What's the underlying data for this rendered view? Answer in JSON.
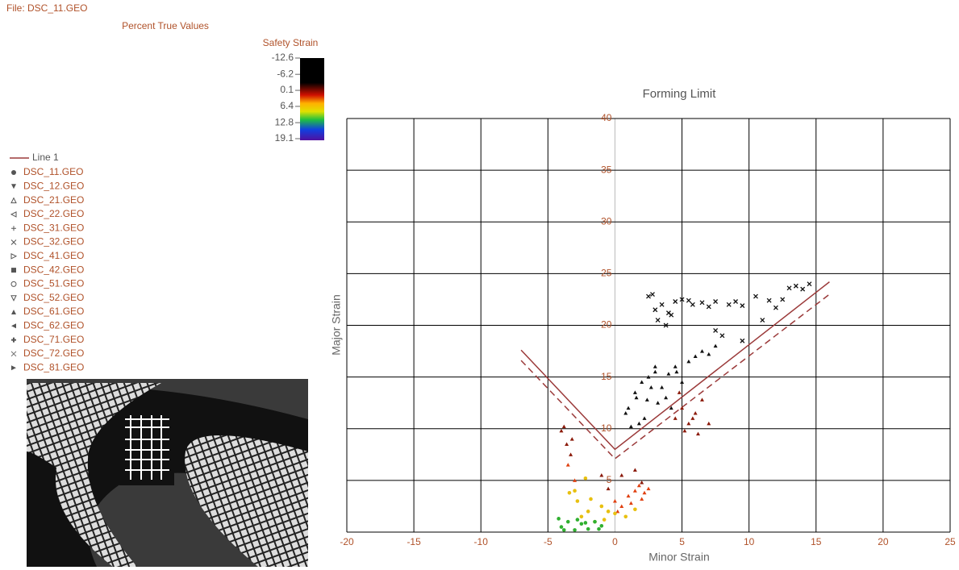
{
  "file_label": "File: DSC_11.GEO",
  "subtitle": "Percent True Values",
  "colorbar": {
    "title": "Safety Strain",
    "ticks": [
      -12.6,
      -6.2,
      0.1,
      6.4,
      12.8,
      19.1
    ]
  },
  "legend": {
    "line": "Line 1",
    "files": [
      "DSC_11.GEO",
      "DSC_12.GEO",
      "DSC_21.GEO",
      "DSC_22.GEO",
      "DSC_31.GEO",
      "DSC_32.GEO",
      "DSC_41.GEO",
      "DSC_42.GEO",
      "DSC_51.GEO",
      "DSC_52.GEO",
      "DSC_61.GEO",
      "DSC_62.GEO",
      "DSC_71.GEO",
      "DSC_72.GEO",
      "DSC_81.GEO"
    ]
  },
  "chart_data": {
    "type": "scatter",
    "title": "Forming Limit",
    "x_label": "Minor Strain",
    "y_label": "Major Strain",
    "xlim": [
      -20,
      25
    ],
    "ylim": [
      0,
      40
    ],
    "xticks": [
      -20,
      -15,
      -10,
      -5,
      0,
      5,
      10,
      15,
      20,
      25
    ],
    "yticks": [
      5,
      10,
      15,
      20,
      25,
      30,
      35,
      40
    ],
    "grid": true,
    "lines": [
      {
        "name": "Line 1",
        "color": "#9b3a3a",
        "x": [
          -7,
          0,
          16
        ],
        "values": [
          17.6,
          8,
          24.2
        ]
      },
      {
        "color": "#9b3a3a",
        "dashed": true,
        "x": [
          -7,
          0,
          16
        ],
        "values": [
          16.6,
          7.1,
          23
        ]
      }
    ],
    "series": [
      {
        "color": "#111111",
        "marker": "x",
        "x": [
          2.5,
          3,
          3.5,
          4,
          4.5,
          3.2,
          2.8,
          5,
          5.5,
          6.5,
          7,
          7.5,
          8.5,
          9,
          9.5,
          10.5,
          11,
          11.5,
          12,
          12.5,
          13,
          13.5,
          14,
          14.5,
          8,
          9.5,
          7.5,
          4.2,
          3.8,
          5.8
        ],
        "values": [
          22.8,
          21.5,
          22,
          21.2,
          22.3,
          20.5,
          23,
          22.5,
          22.4,
          22.2,
          21.8,
          22.3,
          22,
          22.3,
          21.9,
          22.8,
          20.5,
          22.4,
          21.7,
          22.5,
          23.6,
          23.8,
          23.5,
          24,
          19,
          18.5,
          19.5,
          21,
          20,
          22
        ]
      },
      {
        "color": "#111111",
        "marker": "triangle",
        "x": [
          1,
          1.5,
          2,
          2.5,
          3,
          3.5,
          4,
          4.5,
          2.2,
          1.8,
          3.2,
          3.8,
          1.2,
          2.7,
          4.2,
          5,
          0.8,
          1.6,
          3,
          4.6,
          5.5,
          6,
          6.5,
          7,
          7.5,
          2.4
        ],
        "values": [
          12,
          13.5,
          14.5,
          15,
          15.5,
          14,
          15.3,
          16,
          11,
          10.5,
          12.5,
          13,
          10.2,
          14,
          12,
          14.5,
          11.5,
          13,
          16,
          15.5,
          16.5,
          17,
          17.5,
          17.2,
          18,
          12.8
        ]
      },
      {
        "color": "#8b1a0a",
        "marker": "triangle",
        "x": [
          4.5,
          5,
          5.5,
          6,
          6.5,
          4.8,
          5.2,
          5.8,
          6.2,
          7,
          -4,
          -3.6,
          -3.2,
          -3.8,
          -3.3,
          0.5,
          1.5,
          2,
          -1,
          -0.5
        ],
        "values": [
          11,
          12,
          10.5,
          11.5,
          12.8,
          13.5,
          9.8,
          11,
          9.5,
          10.5,
          9.8,
          8.5,
          9,
          10.2,
          7.5,
          5.5,
          6,
          4.8,
          5.5,
          4.2
        ]
      },
      {
        "color": "#e04010",
        "marker": "triangle",
        "x": [
          0,
          0.5,
          1,
          1.5,
          2,
          2.5,
          -3.5,
          -3,
          0.2,
          1.2,
          2.2,
          1.8
        ],
        "values": [
          3,
          2.5,
          3.5,
          4,
          3.2,
          4.2,
          6.5,
          5,
          2,
          2.8,
          3.8,
          4.5
        ]
      },
      {
        "color": "#e8c010",
        "marker": "circle",
        "x": [
          -2.5,
          -2,
          -1.5,
          -1,
          -0.5,
          0,
          -3,
          -2.8,
          -2.2,
          -0.8,
          0.8,
          1.5,
          -1.8,
          -3.4
        ],
        "values": [
          1.5,
          2,
          1,
          2.5,
          2,
          1.8,
          4,
          3,
          5.2,
          1.2,
          1.5,
          2.2,
          3.2,
          3.8
        ]
      },
      {
        "color": "#30b030",
        "marker": "circle",
        "x": [
          -4,
          -3.5,
          -3,
          -2.5,
          -2,
          -1.5,
          -1,
          -4.2,
          -3.8,
          -2.8,
          -2.2,
          -1.2
        ],
        "values": [
          0.5,
          1,
          0.2,
          0.8,
          0.3,
          1,
          0.6,
          1.3,
          0.2,
          1.2,
          0.9,
          0.3
        ]
      }
    ]
  }
}
